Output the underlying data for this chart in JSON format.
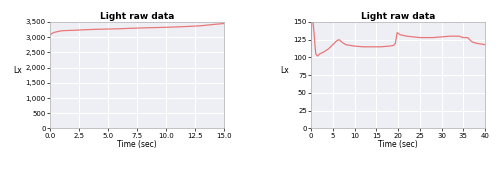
{
  "title": "Light raw data",
  "xlabel": "Time (sec)",
  "ylabel": "Lx",
  "line_color": "#e87878",
  "background_color": "#eeeef5",
  "grid_color": "#ffffff",
  "plot1": {
    "xlim": [
      0,
      15
    ],
    "ylim": [
      0,
      3500
    ],
    "xticks": [
      0.0,
      2.5,
      5.0,
      7.5,
      10.0,
      12.5,
      15.0
    ],
    "yticks": [
      0,
      500,
      1000,
      1500,
      2000,
      2500,
      3000,
      3500
    ],
    "x": [
      0,
      0.3,
      0.6,
      1.0,
      1.5,
      2.0,
      2.5,
      3.0,
      4.0,
      5.0,
      6.0,
      7.0,
      8.0,
      9.0,
      10.0,
      11.0,
      12.0,
      13.0,
      14.0,
      15.0
    ],
    "y": [
      3080,
      3150,
      3180,
      3210,
      3220,
      3225,
      3235,
      3245,
      3258,
      3268,
      3278,
      3292,
      3305,
      3315,
      3325,
      3338,
      3355,
      3375,
      3415,
      3450
    ]
  },
  "plot2": {
    "xlim": [
      0,
      40
    ],
    "ylim": [
      0,
      150
    ],
    "xticks": [
      0,
      5,
      10,
      15,
      20,
      25,
      30,
      35,
      40
    ],
    "yticks": [
      0,
      25,
      50,
      75,
      100,
      125,
      150
    ],
    "x": [
      0,
      0.15,
      0.3,
      0.5,
      0.7,
      0.9,
      1.1,
      1.5,
      2.0,
      3.0,
      4.0,
      5.0,
      6.0,
      6.5,
      7.0,
      8.0,
      10.0,
      12.0,
      14.0,
      16.0,
      18.0,
      19.0,
      19.4,
      19.8,
      20.5,
      22.0,
      25.0,
      28.0,
      30.0,
      32.0,
      33.0,
      34.0,
      35.0,
      36.0,
      37.0,
      38.0,
      39.0,
      40.0
    ],
    "y": [
      100,
      158,
      155,
      148,
      135,
      118,
      105,
      102,
      105,
      108,
      112,
      118,
      124,
      125,
      122,
      118,
      116,
      115,
      115,
      115,
      116,
      117,
      120,
      135,
      132,
      130,
      128,
      128,
      129,
      130,
      130,
      130,
      128,
      128,
      122,
      120,
      119,
      118
    ]
  }
}
